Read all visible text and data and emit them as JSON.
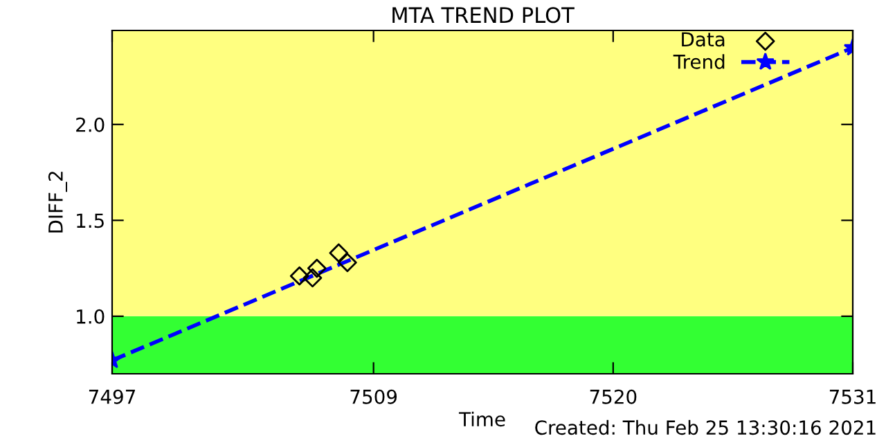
{
  "chart_data": {
    "type": "scatter",
    "title": "MTA TREND PLOT",
    "xlabel": "Time",
    "ylabel": "DIFF_2",
    "annotations": [
      "Created: Thu Feb 25 13:30:16 2021"
    ],
    "series": [
      {
        "name": "Data",
        "color": "#000000",
        "marker": "diamond",
        "x": [
          7505.6,
          7506.2,
          7506.4,
          7507.4,
          7507.8
        ],
        "values": [
          1.21,
          1.2,
          1.25,
          1.33,
          1.28
        ]
      },
      {
        "name": "Trend",
        "type": "line",
        "color": "#0000ff",
        "marker": "star",
        "line_style": "dashed",
        "x": [
          7497,
          7531
        ],
        "values": [
          0.77,
          2.4
        ]
      }
    ],
    "xlim": [
      7497,
      7531
    ],
    "ylim": [
      0.7,
      2.49
    ],
    "xticks": [
      7497,
      7509,
      7520,
      7531
    ],
    "yticks": [
      {
        "value": 1.0,
        "label": "1.0"
      },
      {
        "value": 1.5,
        "label": "1.5"
      },
      {
        "value": 2.0,
        "label": "2.0"
      }
    ],
    "bands": [
      {
        "axis": "y",
        "from": 0.7,
        "to": 1.0,
        "color": "#33ff33"
      },
      {
        "axis": "y",
        "from": 1.0,
        "to": 2.49,
        "color": "#ffff80"
      }
    ],
    "legend": "top right",
    "grid": false
  }
}
